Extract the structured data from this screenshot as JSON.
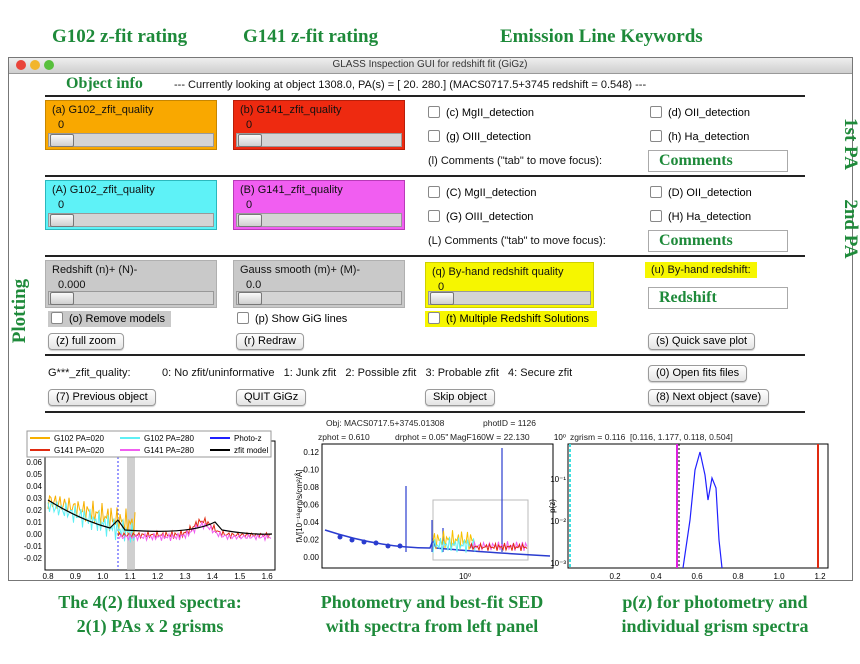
{
  "annotations": {
    "top": [
      "G102 z-fit rating",
      "G141 z-fit rating",
      "Emission Line Keywords"
    ],
    "side": [
      "1st PA",
      "2nd PA",
      "Plotting"
    ],
    "bottom": [
      [
        "The 4(2) fluxed spectra:",
        "2(1) PAs x 2 grisms"
      ],
      [
        "Photometry and best-fit SED",
        "with spectra from left panel"
      ],
      [
        "p(z) for photometry and",
        "individual grism spectra"
      ]
    ]
  },
  "window": {
    "title": "GLASS Inspection GUI for redshift fit (GiGz)",
    "object_info_label": "Object info",
    "object_info": "--- Currently looking at object 1308.0, PA(s) = [  20.  280.]  (MACS0717.5+3745 redshift = 0.548) ---",
    "pa1": {
      "panels": [
        {
          "label": "(a) G102_zfit_quality",
          "value": "0"
        },
        {
          "label": "(b) G141_zfit_quality",
          "value": "0"
        }
      ],
      "checkboxes": [
        "(c) MgII_detection",
        "(d) OII_detection",
        "(g) OIII_detection",
        "(h) Ha_detection"
      ],
      "comments_label": "(l) Comments (\"tab\" to move focus):",
      "comments_field": "Comments"
    },
    "pa2": {
      "panels": [
        {
          "label": "(A) G102_zfit_quality",
          "value": "0"
        },
        {
          "label": "(B) G141_zfit_quality",
          "value": "0"
        }
      ],
      "checkboxes": [
        "(C) MgII_detection",
        "(D) OII_detection",
        "(G) OIII_detection",
        "(H) Ha_detection"
      ],
      "comments_label": "(L) Comments (\"tab\" to move focus):",
      "comments_field": "Comments"
    },
    "plotting": {
      "panels": [
        {
          "label": "Redshift (n)+ (N)-",
          "value": "0.000"
        },
        {
          "label": "Gauss smooth (m)+ (M)-",
          "value": "0.0"
        },
        {
          "label": "(q) By-hand redshift quality",
          "value": "0"
        }
      ],
      "byhand_label": "(u) By-hand redshift:",
      "byhand_field": "Redshift",
      "checkboxes": [
        "(o) Remove models",
        "(p) Show GiG lines",
        "(t) Multiple Redshift Solutions"
      ],
      "buttons": [
        "(z) full zoom",
        "(r) Redraw",
        "(s) Quick save plot"
      ]
    },
    "quality_legend": {
      "label": "G***_zfit_quality:",
      "text": "0: No zfit/uninformative   1: Junk zfit   2: Possible zfit   3: Probable zfit   4: Secure zfit",
      "button": "(0) Open fits files"
    },
    "nav_buttons": [
      "(7) Previous object",
      "QUIT GiGz",
      "Skip object",
      "(8) Next object (save)"
    ]
  },
  "plots": {
    "header": [
      "Obj: MACS0717.5+3745.01308",
      "photID = 1126",
      "zphot = 0.610",
      "drphot = 0.05\"",
      "MagF160W = 22.130",
      "zgrism = 0.116",
      "[0.116, 1.177, 0.118, 0.504]"
    ],
    "spectra": {
      "legend": [
        "G102 PA=020",
        "G102 PA=280",
        "Photo-z",
        "G141 PA=020",
        "G141 PA=280",
        "zfit model"
      ],
      "yticks": [
        "0.06",
        "0.05",
        "0.04",
        "0.03",
        "0.02",
        "0.01",
        "0.00",
        "-0.01",
        "-0.02"
      ],
      "xticks": [
        "0.8",
        "0.9",
        "1.0",
        "1.1",
        "1.2",
        "1.3",
        "1.4",
        "1.5",
        "1.6"
      ]
    },
    "sed": {
      "ylabel": "fλ/[10⁻¹⁸erg/s/cm²/Å]",
      "yticks": [
        "0.12",
        "0.10",
        "0.08",
        "0.06",
        "0.04",
        "0.02",
        "0.00"
      ],
      "xticks": [
        "10⁰"
      ]
    },
    "pz": {
      "ylabel": "p(z)",
      "yticks": [
        "10⁰",
        "10⁻¹",
        "10⁻²",
        "10⁻³"
      ],
      "xticks": [
        "0.2",
        "0.4",
        "0.6",
        "0.8",
        "1.0",
        "1.2"
      ]
    }
  }
}
